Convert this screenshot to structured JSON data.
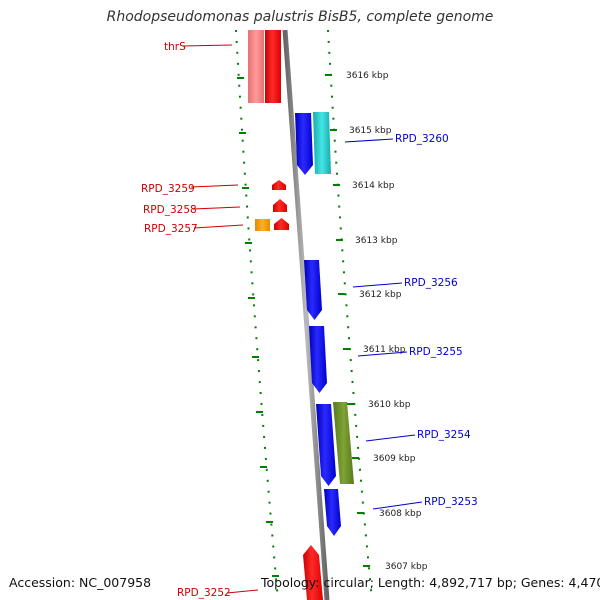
{
  "title": "Rhodopseudomonas palustris BisB5, complete genome",
  "footer": {
    "accession": "Accession: NC_007958",
    "topology": "Topology: circular; Length: 4,892,717 bp; Genes: 4,470"
  },
  "colors": {
    "forward_gene": "#ff0000",
    "forward_gene_light": "#f08080",
    "reverse_gene": "#0000ee",
    "cyan_gene": "#22cccc",
    "olive_gene": "#6b8e23",
    "orange_gene": "#ff9900",
    "backbone": "#888888",
    "tick_marks": "#008000",
    "label_forward": "#cc0000",
    "label_reverse": "#0000cc"
  },
  "scale_ticks": [
    {
      "label": "3616 kbp"
    },
    {
      "label": "3615 kbp"
    },
    {
      "label": "3614 kbp"
    },
    {
      "label": "3613 kbp"
    },
    {
      "label": "3612 kbp"
    },
    {
      "label": "3611 kbp"
    },
    {
      "label": "3610 kbp"
    },
    {
      "label": "3609 kbp"
    },
    {
      "label": "3608 kbp"
    },
    {
      "label": "3607 kbp"
    }
  ],
  "gene_labels": {
    "thrS": "thrS",
    "RPD_3259": "RPD_3259",
    "RPD_3258": "RPD_3258",
    "RPD_3257": "RPD_3257",
    "RPD_3252": "RPD_3252",
    "RPD_3260": "RPD_3260",
    "RPD_3256": "RPD_3256",
    "RPD_3255": "RPD_3255",
    "RPD_3254": "RPD_3254",
    "RPD_3253": "RPD_3253"
  }
}
